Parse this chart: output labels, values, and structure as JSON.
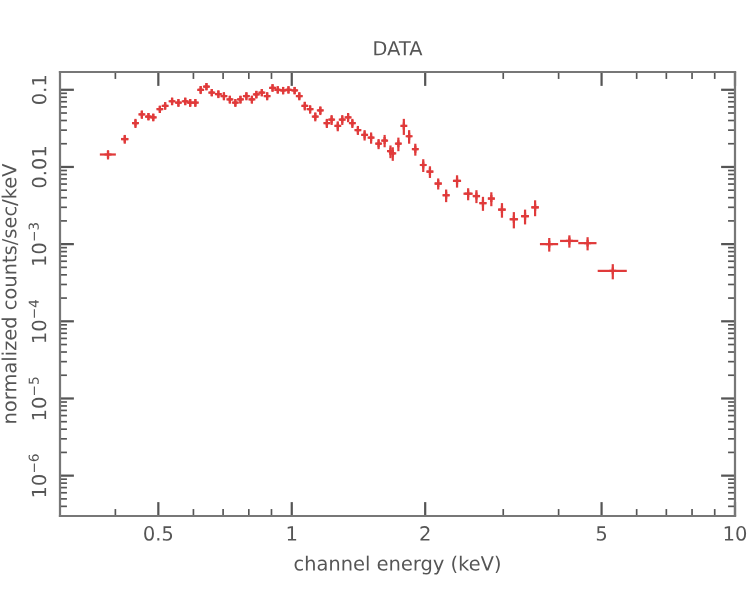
{
  "chart_data": {
    "type": "scatter",
    "title": "DATA",
    "xlabel": "channel energy (keV)",
    "ylabel": "normalized counts/sec/keV",
    "log": "xy",
    "grid": false,
    "marker": "cross",
    "xlim": [
      0.3,
      10
    ],
    "ylim": [
      3e-07,
      0.17
    ],
    "xticks": [
      0.5,
      1,
      2,
      5,
      10
    ],
    "yticks": [
      {
        "value": 1e-06,
        "label": "10$^{−6}$"
      },
      {
        "value": 1e-05,
        "label": "10$^{−5}$"
      },
      {
        "value": 0.0001,
        "label": "10$^{−4}$"
      },
      {
        "value": 0.001,
        "label": "10$^{−3}$"
      },
      0.01,
      0.1
    ],
    "series": [
      {
        "color": "#e03a3a",
        "x": [
          0.385,
          0.42,
          0.444,
          0.459,
          0.475,
          0.487,
          0.504,
          0.518,
          0.537,
          0.555,
          0.575,
          0.59,
          0.606,
          0.623,
          0.642,
          0.66,
          0.683,
          0.703,
          0.725,
          0.746,
          0.766,
          0.79,
          0.813,
          0.832,
          0.856,
          0.88,
          0.905,
          0.93,
          0.956,
          0.983,
          1.015,
          1.04,
          1.07,
          1.1,
          1.13,
          1.16,
          1.2,
          1.23,
          1.27,
          1.3,
          1.34,
          1.37,
          1.41,
          1.46,
          1.51,
          1.57,
          1.62,
          1.67,
          1.69,
          1.74,
          1.79,
          1.84,
          1.9,
          1.98,
          2.05,
          2.14,
          2.23,
          2.36,
          2.5,
          2.61,
          2.7,
          2.82,
          2.98,
          3.17,
          3.36,
          3.54,
          3.81,
          4.23,
          4.65,
          5.3
        ],
        "values": [
          0.0145,
          0.023,
          0.037,
          0.048,
          0.045,
          0.044,
          0.056,
          0.062,
          0.071,
          0.068,
          0.071,
          0.068,
          0.068,
          0.1,
          0.11,
          0.092,
          0.088,
          0.083,
          0.075,
          0.068,
          0.075,
          0.083,
          0.075,
          0.087,
          0.092,
          0.083,
          0.106,
          0.1,
          0.098,
          0.1,
          0.098,
          0.083,
          0.062,
          0.056,
          0.045,
          0.054,
          0.037,
          0.041,
          0.034,
          0.041,
          0.044,
          0.037,
          0.03,
          0.026,
          0.024,
          0.02,
          0.022,
          0.016,
          0.015,
          0.02,
          0.034,
          0.025,
          0.017,
          0.0106,
          0.0087,
          0.0061,
          0.0043,
          0.0066,
          0.0045,
          0.0042,
          0.0034,
          0.0039,
          0.0028,
          0.0021,
          0.0023,
          0.003,
          0.001,
          0.0011,
          0.00103,
          0.00045
        ],
        "errors": [
          0.002,
          0.003,
          0.005,
          0.006,
          0.005,
          0.005,
          0.006,
          0.007,
          0.008,
          0.008,
          0.008,
          0.008,
          0.008,
          0.012,
          0.012,
          0.01,
          0.01,
          0.01,
          0.009,
          0.008,
          0.009,
          0.01,
          0.009,
          0.01,
          0.01,
          0.01,
          0.012,
          0.011,
          0.011,
          0.011,
          0.011,
          0.01,
          0.008,
          0.007,
          0.006,
          0.007,
          0.005,
          0.006,
          0.005,
          0.006,
          0.006,
          0.005,
          0.004,
          0.004,
          0.004,
          0.003,
          0.004,
          0.003,
          0.003,
          0.004,
          0.008,
          0.005,
          0.003,
          0.002,
          0.0015,
          0.001,
          0.0008,
          0.0012,
          0.0008,
          0.0008,
          0.0007,
          0.0008,
          0.0006,
          0.0005,
          0.0005,
          0.0007,
          0.0002,
          0.0002,
          0.0002,
          0.0001
        ],
        "xerrors": [
          0.016,
          0.008,
          0.006,
          0.006,
          0.006,
          0.006,
          0.006,
          0.006,
          0.007,
          0.007,
          0.007,
          0.007,
          0.007,
          0.008,
          0.008,
          0.008,
          0.008,
          0.009,
          0.009,
          0.009,
          0.009,
          0.01,
          0.01,
          0.01,
          0.01,
          0.011,
          0.011,
          0.011,
          0.012,
          0.012,
          0.012,
          0.013,
          0.013,
          0.013,
          0.014,
          0.014,
          0.015,
          0.015,
          0.016,
          0.016,
          0.017,
          0.017,
          0.017,
          0.018,
          0.019,
          0.02,
          0.02,
          0.021,
          0.021,
          0.022,
          0.022,
          0.023,
          0.024,
          0.025,
          0.035,
          0.04,
          0.04,
          0.05,
          0.06,
          0.05,
          0.05,
          0.05,
          0.06,
          0.07,
          0.07,
          0.07,
          0.18,
          0.2,
          0.22,
          0.4
        ]
      }
    ]
  }
}
